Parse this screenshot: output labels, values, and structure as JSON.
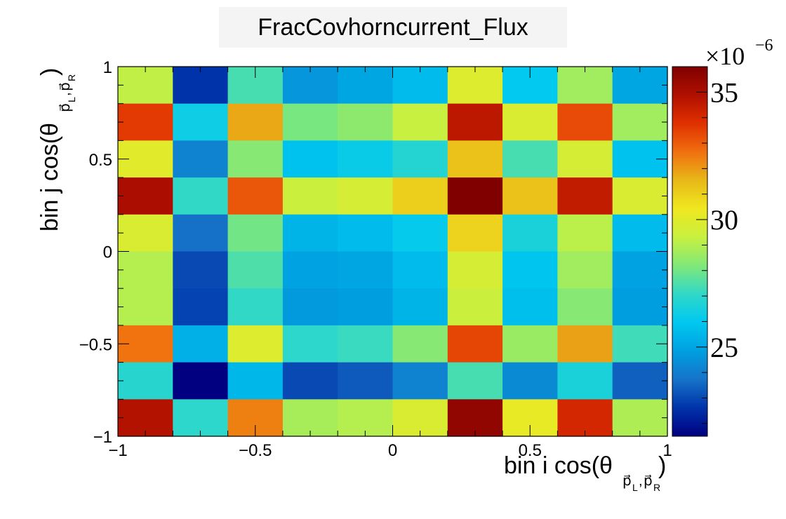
{
  "chart_data": {
    "type": "heatmap",
    "title": "FracCovhorncurrent_Flux",
    "xlabel": "bin i cos(θ",
    "xlabel_sub": "p⃗",
    "xlabel_sub_L": "L",
    "xlabel_sub_R": "R",
    "ylabel": "bin j cos(θ",
    "ylabel_sub": "p⃗",
    "ylabel_sub_L": "L",
    "ylabel_sub_R": "R",
    "label_close": ")",
    "label_comma": ",",
    "xlim": [
      -1,
      1
    ],
    "ylim": [
      -1,
      1
    ],
    "x_ticks": [
      {
        "value": -1,
        "label": "−1"
      },
      {
        "value": -0.5,
        "label": "−0.5"
      },
      {
        "value": 0,
        "label": "0"
      },
      {
        "value": 0.5,
        "label": "0.5"
      },
      {
        "value": 1,
        "label": "1"
      }
    ],
    "y_ticks": [
      {
        "value": -1,
        "label": "−1"
      },
      {
        "value": -0.5,
        "label": "−0.5"
      },
      {
        "value": 0,
        "label": "0"
      },
      {
        "value": 0.5,
        "label": "0.5"
      },
      {
        "value": 1,
        "label": "1"
      }
    ],
    "nbins_x": 10,
    "nbins_y": 10,
    "z_values_top_to_bottom": [
      [
        29.2,
        22.6,
        27.4,
        24.6,
        25.0,
        25.6,
        29.9,
        26.0,
        28.7,
        25.0
      ],
      [
        33.6,
        26.3,
        31.8,
        28.1,
        28.4,
        29.3,
        34.6,
        29.8,
        33.3,
        28.7
      ],
      [
        30.0,
        24.1,
        28.3,
        25.8,
        26.2,
        26.8,
        31.3,
        27.4,
        29.7,
        25.8
      ],
      [
        35.0,
        27.1,
        33.1,
        29.4,
        29.7,
        31.0,
        36.0,
        31.3,
        34.5,
        29.8
      ],
      [
        29.8,
        23.7,
        28.0,
        25.4,
        25.6,
        26.1,
        30.9,
        26.6,
        29.1,
        25.6
      ],
      [
        29.0,
        23.0,
        27.5,
        24.9,
        25.0,
        25.6,
        29.7,
        25.9,
        28.7,
        24.9
      ],
      [
        29.0,
        22.9,
        27.1,
        24.7,
        24.8,
        25.4,
        29.4,
        25.7,
        28.3,
        24.8
      ],
      [
        32.6,
        25.3,
        29.9,
        27.0,
        27.2,
        28.3,
        33.4,
        28.6,
        31.9,
        27.3
      ],
      [
        26.9,
        21.5,
        25.5,
        23.0,
        23.3,
        24.1,
        27.4,
        24.3,
        26.6,
        23.4
      ],
      [
        34.8,
        27.0,
        32.4,
        28.8,
        29.0,
        29.8,
        35.6,
        30.2,
        34.1,
        28.9
      ]
    ],
    "z_multiplier_label": "×10",
    "z_multiplier_exponent": "−6",
    "zlim": [
      21.5,
      36.0
    ],
    "z_ticks": [
      {
        "value": 25,
        "label": "25"
      },
      {
        "value": 30,
        "label": "30"
      },
      {
        "value": 35,
        "label": "35"
      }
    ],
    "palette": [
      "#000080",
      "#0033aa",
      "#1673c8",
      "#00a0e0",
      "#00c8f0",
      "#30d8c8",
      "#80e878",
      "#c8f040",
      "#f0e820",
      "#e8b818",
      "#f07010",
      "#e03000",
      "#b01000",
      "#800000"
    ]
  }
}
